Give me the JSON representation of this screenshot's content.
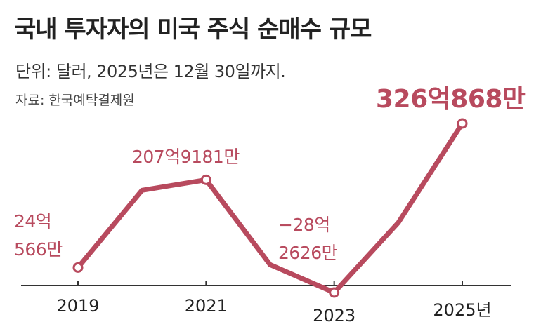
{
  "chart_data": {
    "type": "line",
    "title": "국내 투자자의 미국 주식 순매수 규모",
    "subtitle": "단위: 달러, 2025년은 12월 30일까지.",
    "source": "자료: 한국예탁결제원",
    "categories": [
      "2019",
      null,
      "2021",
      null,
      "2023",
      null,
      "2025년"
    ],
    "series": [
      {
        "name": null,
        "color": "#b84a5e",
        "values": [
          2405660000,
          18600000000,
          20791810000,
          3000000000,
          -2826260000,
          11800000000,
          32608680000
        ],
        "value_labels": [
          "24억\n566만",
          null,
          "207억9181만",
          null,
          "−28억\n2626만",
          null,
          "326억868만"
        ]
      }
    ]
  }
}
